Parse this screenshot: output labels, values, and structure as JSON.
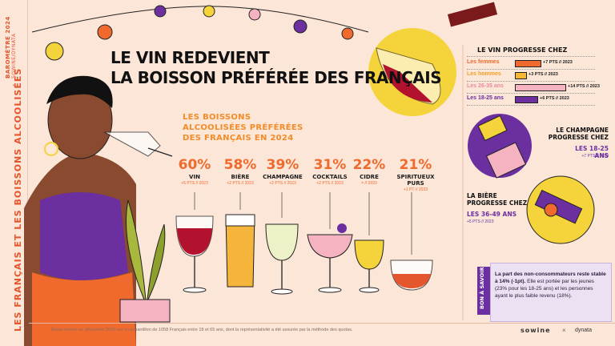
{
  "sidebar": {
    "barometre": "BAROMÈTRE 2024",
    "partners": "SOWINE/DYNATA",
    "main_title": "LES FRANÇAIS ET LES BOISSONS ALCOOLISÉES"
  },
  "header": {
    "title_line1": "LE VIN REDEVIENT",
    "title_line2": "LA BOISSON PRÉFÉRÉE DES FRANÇAIS"
  },
  "subtitle": {
    "line1": "LES BOISSONS",
    "line2": "ALCOOLISÉES PRÉFÉRÉES",
    "line3": "DES FRANÇAIS EN 2024"
  },
  "drinks": [
    {
      "pct": "60%",
      "label": "VIN",
      "change": "+5 PTS // 2023"
    },
    {
      "pct": "58%",
      "label": "BIÈRE",
      "change": "+2 PTS // 2023"
    },
    {
      "pct": "39%",
      "label": "CHAMPAGNE",
      "change": "+2 PTS // 2023"
    },
    {
      "pct": "31%",
      "label": "COCKTAILS",
      "change": "+2 PTS // 2023"
    },
    {
      "pct": "22%",
      "label": "CIDRE",
      "change": "= // 2023"
    },
    {
      "pct": "21%",
      "label": "SPIRITUEUX PURS",
      "change": "+1 PT // 2023"
    }
  ],
  "wine_panel": {
    "title": "LE VIN PROGRESSE CHEZ",
    "rows": [
      {
        "name": "Les femmes",
        "value": "+7 PTS // 2023",
        "pts": 7,
        "color": "#ef6a2c"
      },
      {
        "name": "Les hommes",
        "value": "+3 PTS // 2023",
        "pts": 3,
        "color": "#f7b733"
      },
      {
        "name": "Les 26-35 ans",
        "value": "+14 PTS // 2023",
        "pts": 14,
        "color": "#f5b3c2"
      },
      {
        "name": "Les 18-25 ans",
        "value": "+6 PTS // 2023",
        "pts": 6,
        "color": "#6b2fa0"
      }
    ]
  },
  "champagne": {
    "title_line1": "LE CHAMPAGNE",
    "title_line2": "PROGRESSE CHEZ",
    "group": "LES 18-25 ANS",
    "change": "+7 PTS // 2023"
  },
  "biere": {
    "title_line1": "LA BIÈRE",
    "title_line2": "PROGRESSE CHEZ",
    "group": "LES 36-49 ANS",
    "change": "+5 PTS // 2023"
  },
  "note": {
    "tag": "BON À SAVOIR",
    "text_bold": "La part des non-consommateurs reste stable à 14% (-1pt).",
    "text_rest": " Elle est portée par les jeunes (23% pour les 18-25 ans) et les personnes ayant le plus faible revenu (18%)."
  },
  "footer": {
    "text": "Étude menée en décembre 2023 sur un échantillon de 1058 Français entre 18 et 65 ans, dont la représentativité a été assurée par la méthode des quotas.",
    "logo1": "sowine",
    "logo_sep": "×",
    "logo2": "dynata"
  }
}
